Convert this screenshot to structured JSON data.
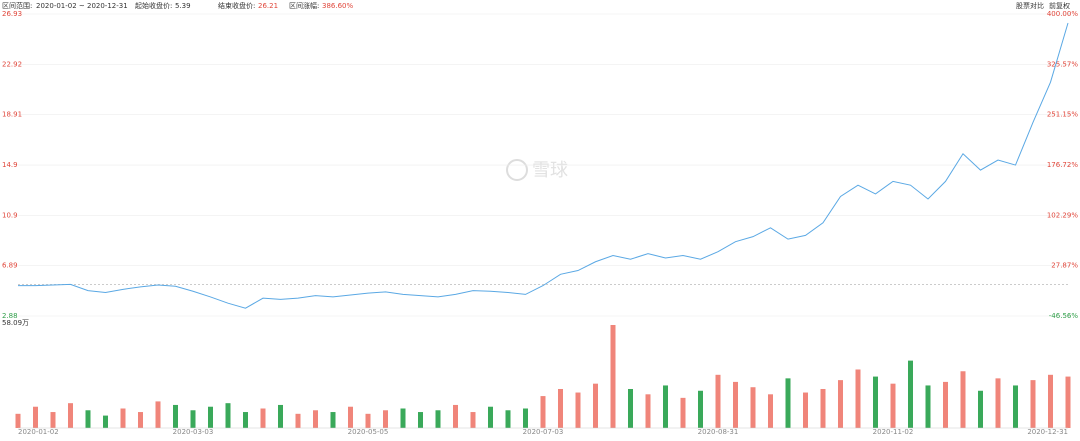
{
  "header": {
    "range_label": "区间范围:",
    "range": "2020-01-02 ~ 2020-12-31",
    "start_label": "起始收盘价:",
    "start_value": 5.39,
    "end_label": "结束收盘价:",
    "end_value": 26.21,
    "change_label": "区间涨幅:",
    "change": "386.60%",
    "compare": "股票对比",
    "adjust": "前复权",
    "watermark": "雪球"
  },
  "chart_data": [
    {
      "type": "line",
      "color": "#5aa8e4",
      "up_color": "#e0463a",
      "down_color": "#2f9e48",
      "grid": true,
      "values": [
        5.3,
        5.3,
        5.35,
        5.4,
        4.9,
        4.75,
        5.0,
        5.2,
        5.35,
        5.25,
        4.85,
        4.4,
        3.9,
        3.5,
        4.3,
        4.2,
        4.3,
        4.5,
        4.4,
        4.55,
        4.7,
        4.8,
        4.6,
        4.5,
        4.4,
        4.6,
        4.9,
        4.85,
        4.75,
        4.6,
        5.3,
        6.2,
        6.5,
        7.2,
        7.7,
        7.4,
        7.85,
        7.5,
        7.7,
        7.4,
        8.0,
        8.8,
        9.2,
        9.9,
        9.0,
        9.3,
        10.3,
        12.4,
        13.3,
        12.6,
        13.6,
        13.3,
        12.2,
        13.6,
        15.8,
        14.5,
        15.3,
        14.9,
        18.3,
        21.5,
        26.21
      ],
      "ylim": [
        2.88,
        26.93
      ],
      "yticks": [
        2.88,
        6.89,
        10.9,
        14.9,
        18.91,
        22.92,
        26.93
      ],
      "y2lim": [
        -46.56,
        400
      ],
      "y2ticks": [
        {
          "value": -46.56,
          "label": "-46.56%"
        },
        {
          "value": 27.87,
          "label": "27.87%"
        },
        {
          "value": 102.29,
          "label": "102.29%"
        },
        {
          "value": 176.72,
          "label": "176.72%"
        },
        {
          "value": 251.15,
          "label": "251.15%"
        },
        {
          "value": 325.57,
          "label": "325.57%"
        },
        {
          "value": 400,
          "label": "400.00%"
        }
      ]
    },
    {
      "type": "bar",
      "up_color": "#f0857a",
      "down_color": "#3aa95a",
      "categories": [
        "2020-01-02",
        null,
        null,
        null,
        null,
        null,
        null,
        null,
        null,
        null,
        "2020-03-03",
        null,
        null,
        null,
        null,
        null,
        null,
        null,
        null,
        null,
        "2020-05-05",
        null,
        null,
        null,
        null,
        null,
        null,
        null,
        null,
        null,
        "2020-07-03",
        null,
        null,
        null,
        null,
        null,
        null,
        null,
        null,
        null,
        "2020-08-31",
        null,
        null,
        null,
        null,
        null,
        null,
        null,
        null,
        null,
        "2020-11-02",
        null,
        null,
        null,
        null,
        null,
        null,
        null,
        null,
        null,
        "2020-12-31"
      ],
      "values": [
        8,
        12,
        9,
        14,
        10,
        7,
        11,
        9,
        15,
        13,
        10,
        12,
        14,
        9,
        11,
        13,
        8,
        10,
        9,
        12,
        8,
        10,
        11,
        9,
        10,
        13,
        9,
        12,
        10,
        11,
        18,
        22,
        20,
        25,
        58.09,
        22,
        19,
        24,
        17,
        21,
        30,
        26,
        23,
        19,
        28,
        20,
        22,
        27,
        33,
        29,
        25,
        38,
        24,
        26,
        32,
        21,
        28,
        24,
        27,
        30,
        29
      ],
      "ylim": [
        0,
        58.09
      ],
      "yticks": [
        {
          "value": 58.09,
          "label": "58.09万"
        }
      ]
    }
  ]
}
